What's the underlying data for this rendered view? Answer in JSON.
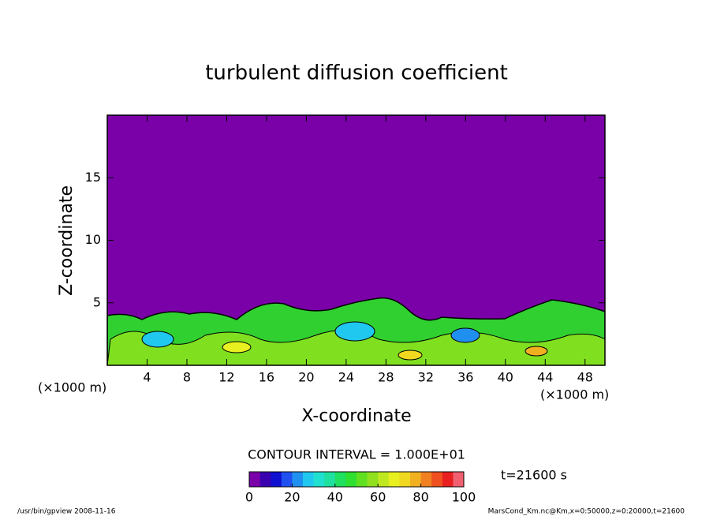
{
  "chart_data": {
    "type": "contour",
    "title": "turbulent diffusion coefficient",
    "xlabel": "X-coordinate",
    "ylabel": "Z-coordinate",
    "x_unit_left": "(×1000 m)",
    "x_unit_right": "(×1000 m)",
    "xlim": [
      0,
      50
    ],
    "xticks": [
      4,
      8,
      12,
      16,
      20,
      24,
      28,
      32,
      36,
      40,
      44,
      48
    ],
    "ylim": [
      0,
      20
    ],
    "yticks": [
      5,
      10,
      15
    ],
    "background_color": "#7a00a8",
    "contour_interval": "CONTOUR INTERVAL = 1.000E+01",
    "time_label": "t=21600 s",
    "colorbar": {
      "lim": [
        0,
        100
      ],
      "ticks": [
        0,
        20,
        40,
        60,
        80,
        100
      ],
      "colors": [
        "#7a00a8",
        "#3a00b0",
        "#1010d0",
        "#2050f0",
        "#2090f0",
        "#20c8f0",
        "#20e0d0",
        "#20e0a0",
        "#20e060",
        "#30e030",
        "#60e020",
        "#90e020",
        "#c0e820",
        "#e8f020",
        "#f0d820",
        "#f0b020",
        "#f08020",
        "#f05020",
        "#e82020",
        "#f06070"
      ]
    },
    "footer_left": "/usr/bin/gpview  2008-11-16",
    "footer_right": "MarsCond_Km.nc@Km,x=0:50000,z=0:20000,t=21600"
  }
}
